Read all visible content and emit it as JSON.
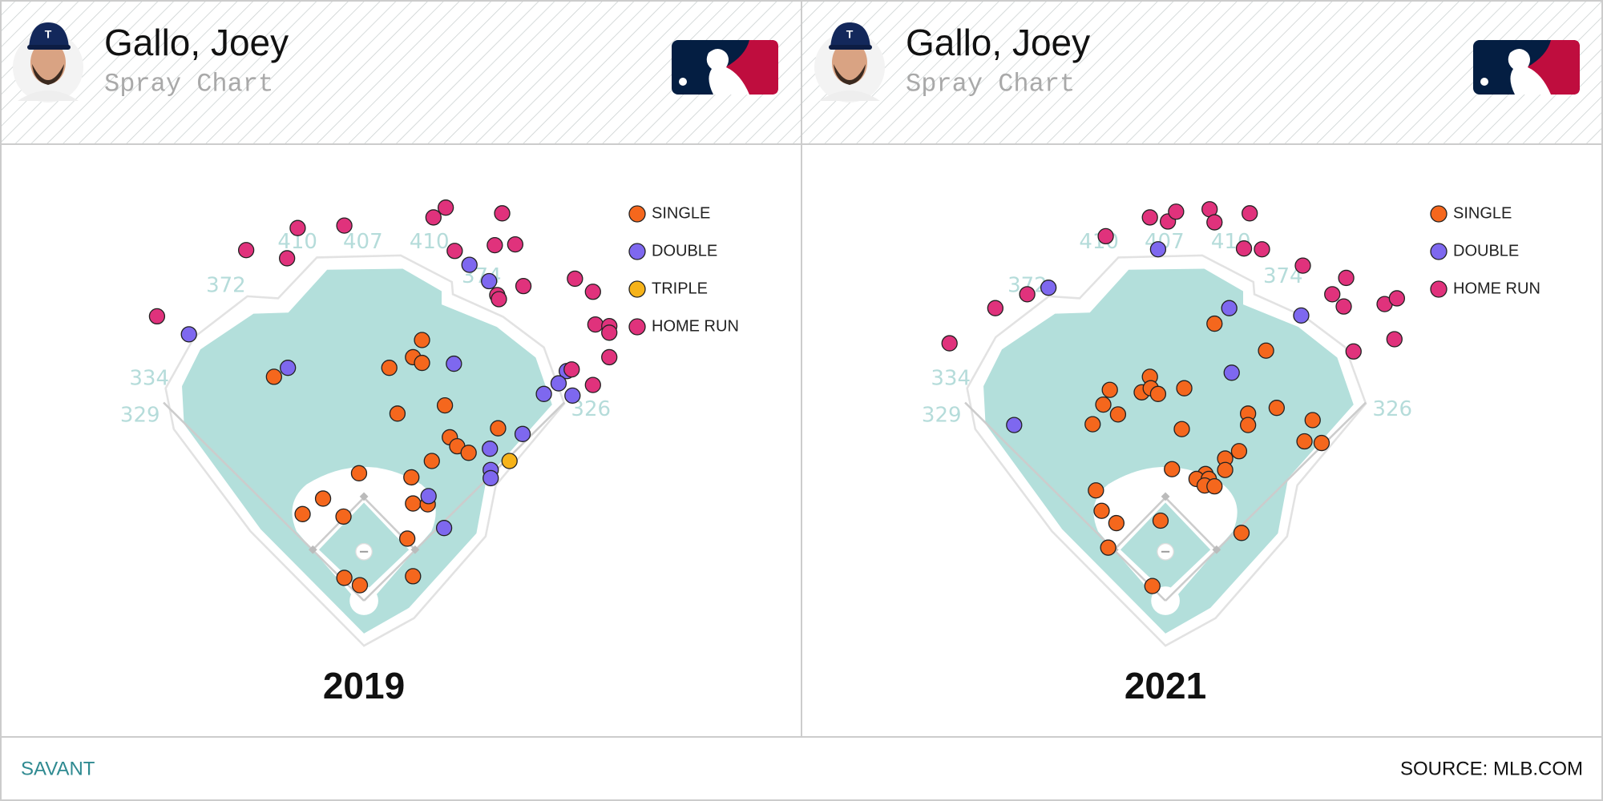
{
  "chart_data": [
    {
      "type": "scatter",
      "player": "Gallo, Joey",
      "subtitle": "Spray Chart",
      "title": "2019",
      "wall_labels": [
        410,
        407,
        410,
        374,
        372,
        334,
        329,
        326
      ],
      "series": [
        {
          "name": "SINGLE",
          "color": "#f5671d",
          "x": [
            71,
            60,
            71,
            31,
            -110,
            41,
            99,
            164,
            105,
            114,
            128,
            83,
            -6,
            58,
            -50,
            -75,
            -25,
            60,
            78,
            53,
            -24,
            -5,
            60
          ],
          "values": [
            319,
            298,
            291,
            285,
            274,
            229,
            239,
            211,
            200,
            189,
            181,
            171,
            156,
            151,
            125,
            106,
            103,
            119,
            118,
            76,
            28,
            19,
            30
          ]
        },
        {
          "name": "DOUBLE",
          "color": "#7e68ef",
          "x": [
            -214,
            -93,
            110,
            129,
            153,
            248,
            238,
            220,
            255,
            194,
            154,
            155,
            155,
            79,
            98
          ],
          "values": [
            326,
            285,
            290,
            411,
            391,
            281,
            266,
            253,
            251,
            204,
            186,
            160,
            150,
            128,
            89
          ]
        },
        {
          "name": "TRIPLE",
          "color": "#f6b319",
          "x": [
            178
          ],
          "values": [
            171
          ]
        },
        {
          "name": "HOME RUN",
          "color": "#e0327c",
          "x": [
            -253,
            -144,
            -94,
            -81,
            -24,
            85,
            100,
            169,
            111,
            160,
            185,
            163,
            165,
            195,
            258,
            280,
            283,
            300,
            300,
            300,
            280,
            254
          ],
          "values": [
            348,
            429,
            419,
            456,
            459,
            469,
            481,
            474,
            428,
            435,
            436,
            374,
            369,
            385,
            394,
            378,
            338,
            336,
            328,
            298,
            264,
            283
          ]
        }
      ]
    },
    {
      "type": "scatter",
      "player": "Gallo, Joey",
      "subtitle": "Spray Chart",
      "title": "2021",
      "wall_labels": [
        410,
        407,
        410,
        374,
        372,
        334,
        329,
        326
      ],
      "series": [
        {
          "name": "SINGLE",
          "color": "#f5671d",
          "x": [
            60,
            123,
            -19,
            23,
            -68,
            -29,
            -18,
            -9,
            -76,
            -58,
            -89,
            20,
            101,
            136,
            101,
            180,
            170,
            191,
            90,
            73,
            8,
            73,
            49,
            38,
            53,
            48,
            60,
            -85,
            -78,
            -60,
            -6,
            93,
            -70,
            -16
          ],
          "values": [
            339,
            306,
            274,
            260,
            258,
            255,
            260,
            253,
            240,
            228,
            216,
            210,
            229,
            236,
            215,
            221,
            195,
            193,
            183,
            174,
            161,
            160,
            155,
            149,
            149,
            141,
            140,
            135,
            110,
            95,
            98,
            83,
            65,
            18
          ]
        },
        {
          "name": "DOUBLE",
          "color": "#7e68ef",
          "x": [
            -9,
            -143,
            78,
            166,
            81,
            -185
          ],
          "values": [
            430,
            383,
            358,
            349,
            279,
            215
          ]
        },
        {
          "name": "HOME RUN",
          "color": "#e0327c",
          "x": [
            -73,
            -19,
            3,
            13,
            54,
            60,
            103,
            96,
            118,
            168,
            221,
            204,
            218,
            268,
            283,
            -169,
            -208,
            -264,
            230,
            280
          ],
          "values": [
            446,
            469,
            464,
            476,
            479,
            463,
            474,
            431,
            430,
            410,
            395,
            375,
            360,
            363,
            370,
            375,
            358,
            315,
            305,
            320
          ]
        }
      ]
    }
  ],
  "footer": {
    "left": "SAVANT",
    "right": "SOURCE: MLB.COM"
  }
}
